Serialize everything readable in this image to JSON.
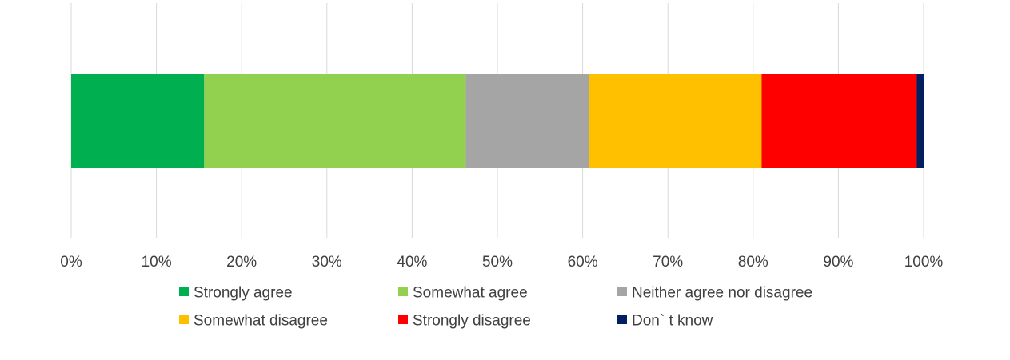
{
  "chart_data": {
    "type": "bar",
    "orientation": "horizontal",
    "stacked": true,
    "categories": [
      ""
    ],
    "xlim": [
      0,
      100
    ],
    "x_ticks": [
      "0%",
      "10%",
      "20%",
      "30%",
      "40%",
      "50%",
      "60%",
      "70%",
      "80%",
      "90%",
      "100%"
    ],
    "grid": true,
    "legend_position": "bottom",
    "series": [
      {
        "name": "Strongly agree",
        "values": [
          15.6
        ],
        "color": "#00B050"
      },
      {
        "name": "Somewhat agree",
        "values": [
          30.7
        ],
        "color": "#92D050"
      },
      {
        "name": "Neither agree nor disagree",
        "values": [
          14.4
        ],
        "color": "#A5A5A5"
      },
      {
        "name": "Somewhat disagree",
        "values": [
          20.3
        ],
        "color": "#FFC000"
      },
      {
        "name": "Strongly disagree",
        "values": [
          18.2
        ],
        "color": "#FF0000"
      },
      {
        "name": "Don` t know",
        "values": [
          0.8
        ],
        "color": "#002060"
      }
    ]
  }
}
